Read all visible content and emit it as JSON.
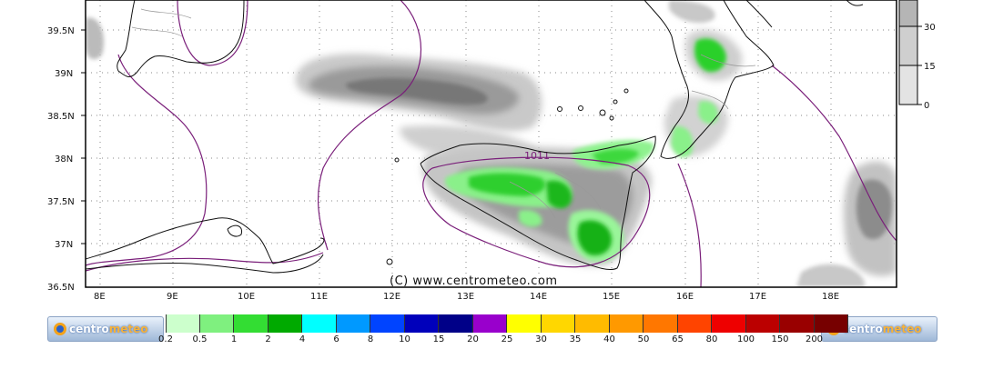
{
  "map": {
    "lat_labels": [
      "39.5N",
      "39N",
      "38.5N",
      "38N",
      "37.5N",
      "37N",
      "36.5N"
    ],
    "lon_labels": [
      "8E",
      "9E",
      "10E",
      "11E",
      "12E",
      "13E",
      "14E",
      "15E",
      "16E",
      "17E",
      "18E"
    ],
    "isobar_label": "1011",
    "copyright": "(C) www.centrometeo.com"
  },
  "side_scale": {
    "ticks": [
      "30",
      "15",
      "0"
    ]
  },
  "colorbar": {
    "labels": [
      "0.2",
      "0.5",
      "1",
      "2",
      "4",
      "6",
      "8",
      "10",
      "15",
      "20",
      "25",
      "30",
      "35",
      "40",
      "50",
      "65",
      "80",
      "100",
      "150",
      "200"
    ],
    "colors": [
      "#ccffcc",
      "#7ff07f",
      "#33dd33",
      "#00aa00",
      "#00ffff",
      "#0099ff",
      "#0044ff",
      "#0000bb",
      "#000088",
      "#9900cc",
      "#ffff00",
      "#ffd700",
      "#ffbb00",
      "#ff9900",
      "#ff7700",
      "#ff4400",
      "#ee0000",
      "#bb0000",
      "#990000",
      "#770000"
    ]
  },
  "logo": {
    "text_a": "centro",
    "text_b": "meteo"
  }
}
